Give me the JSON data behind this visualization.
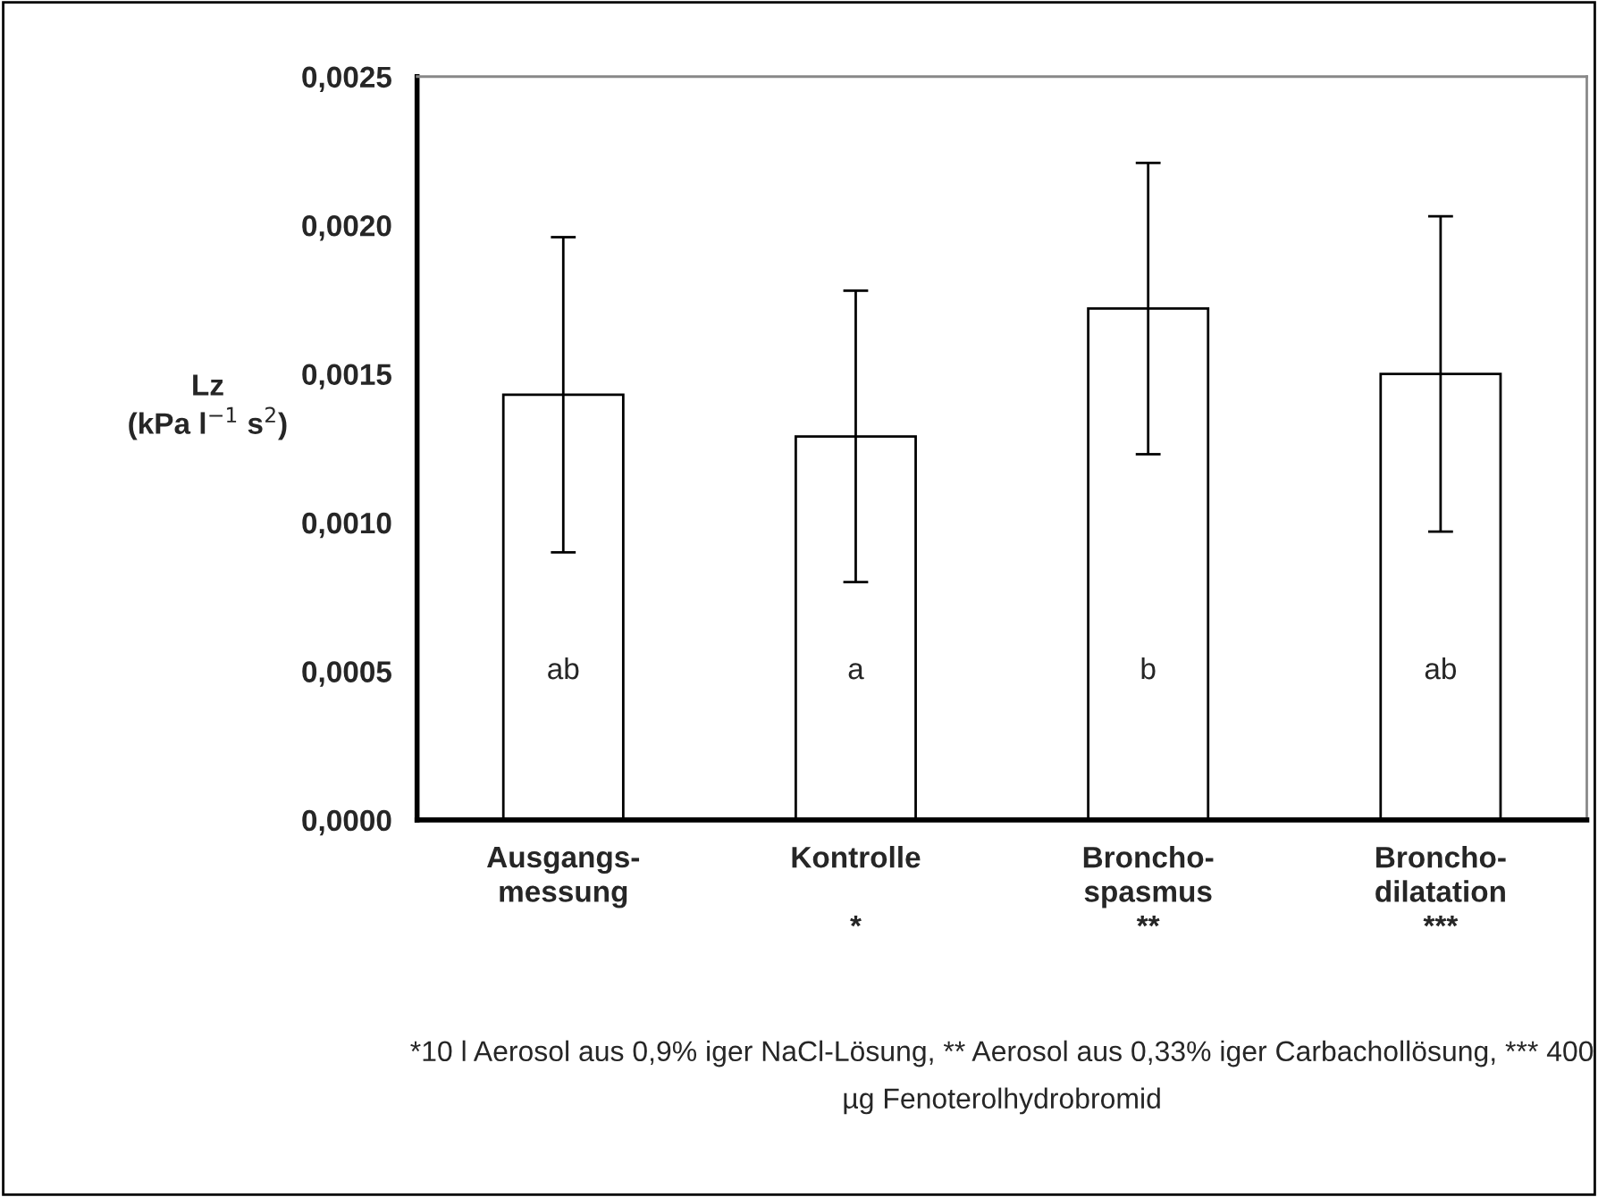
{
  "chart_data": {
    "type": "bar",
    "ylabel": "Lz\n(kPa l$^{−1}$ s$^{2}$)",
    "categories": [
      "Ausgangs-\nmessung",
      "Kontrolle\n\n*",
      "Broncho-\nspasmus\n**",
      "Broncho-\ndilatation\n***"
    ],
    "values": [
      0.00143,
      0.00129,
      0.00172,
      0.0015
    ],
    "errors": [
      [
        0.0009,
        0.00196
      ],
      [
        0.0008,
        0.00178
      ],
      [
        0.00123,
        0.00221
      ],
      [
        0.00097,
        0.00203
      ]
    ],
    "color": "#ffffff",
    "ylim": [
      0,
      0.0025
    ],
    "yticks": [
      {
        "value": 0,
        "label": "0,0000"
      },
      {
        "value": 0.0005,
        "label": "0,0005"
      },
      {
        "value": 0.001,
        "label": "0,0010"
      },
      {
        "value": 0.0015,
        "label": "0,0015"
      },
      {
        "value": 0.002,
        "label": "0,0020"
      },
      {
        "value": 0.0025,
        "label": "0,0025"
      }
    ],
    "grid": false,
    "legend": false,
    "annotations": [
      "ab",
      "a",
      "b",
      "ab",
      "*10 l Aerosol aus 0,9% iger NaCl-Lösung, ** Aerosol aus 0,33% iger Carbachollösung, *** 400 µg Fenoterolhydrobromid"
    ]
  }
}
